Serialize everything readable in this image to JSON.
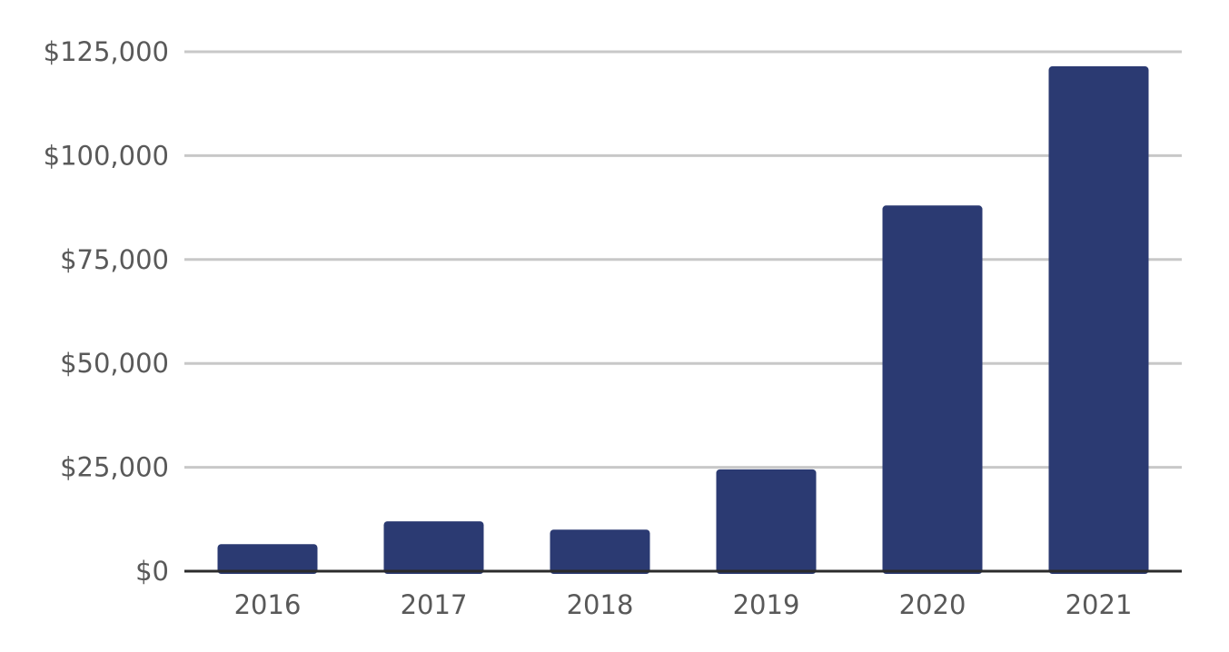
{
  "chart_data": {
    "type": "bar",
    "title": "",
    "xlabel": "",
    "ylabel": "",
    "categories": [
      "2016",
      "2017",
      "2018",
      "2019",
      "2020",
      "2021"
    ],
    "values": [
      6500,
      12000,
      10000,
      24500,
      88000,
      121500
    ],
    "ylim": [
      0,
      125000
    ],
    "y_ticks": [
      0,
      25000,
      50000,
      75000,
      100000,
      125000
    ],
    "y_tick_labels": [
      "$0",
      "$25,000",
      "$50,000",
      "$75,000",
      "$100,000",
      "$125,000"
    ],
    "grid": true,
    "legend": "none",
    "bar_color": "#2b3a72",
    "grid_color": "#c8c8c8",
    "axis_color": "#2b2b2b",
    "label_color": "#595959"
  }
}
